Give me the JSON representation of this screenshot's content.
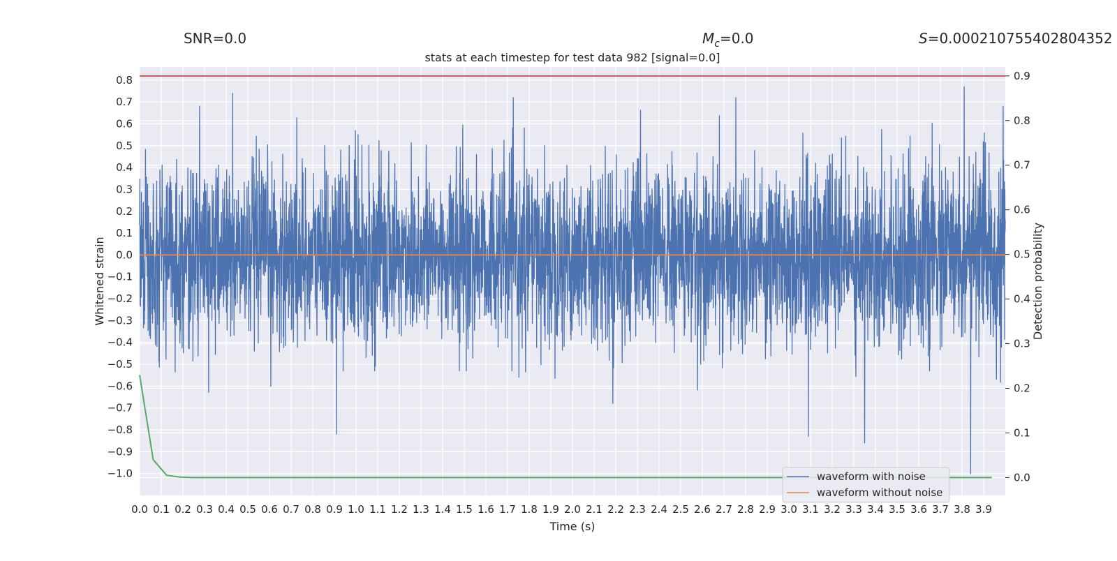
{
  "chart_data": {
    "type": "line",
    "title": "stats at each timestep for test data 982 [signal=0.0]",
    "header": {
      "snr": "SNR=0.0",
      "mc_symbol": "M",
      "mc_subscript": "c",
      "mc_value": "=0.0",
      "s_symbol": "S",
      "s_value": "=0.000210755402804352"
    },
    "xlabel": "Time (s)",
    "ylabel_left": "Whitened strain",
    "ylabel_right": "Detection probability",
    "xlim": [
      0.0,
      4.0
    ],
    "ylim_left": [
      -1.1,
      0.86
    ],
    "ylim_right": [
      -0.04,
      0.92
    ],
    "xticks": [
      "0.0",
      "0.1",
      "0.2",
      "0.3",
      "0.4",
      "0.5",
      "0.6",
      "0.7",
      "0.8",
      "0.9",
      "1.0",
      "1.1",
      "1.2",
      "1.3",
      "1.4",
      "1.5",
      "1.6",
      "1.7",
      "1.8",
      "1.9",
      "2.0",
      "2.1",
      "2.2",
      "2.3",
      "2.4",
      "2.5",
      "2.6",
      "2.7",
      "2.8",
      "2.9",
      "3.0",
      "3.1",
      "3.2",
      "3.3",
      "3.4",
      "3.5",
      "3.6",
      "3.7",
      "3.8",
      "3.9"
    ],
    "yticks_left": [
      "0.8",
      "0.7",
      "0.6",
      "0.5",
      "0.4",
      "0.3",
      "0.2",
      "0.1",
      "0.0",
      "−0.1",
      "−0.2",
      "−0.3",
      "−0.4",
      "−0.5",
      "−0.6",
      "−0.7",
      "−0.8",
      "−0.9",
      "−1.0"
    ],
    "yticks_right": [
      "0.9",
      "0.8",
      "0.7",
      "0.6",
      "0.5",
      "0.4",
      "0.3",
      "0.2",
      "0.1",
      "0.0"
    ],
    "grid": true,
    "legend_position": "bottom-right",
    "colors": {
      "background": "#eaeaf2",
      "grid": "#ffffff",
      "noisy": "#4c72b0",
      "clean": "#dd8452",
      "probability": "#55a868",
      "threshold": "#c44e52"
    },
    "series": [
      {
        "name": "waveform with noise",
        "axis": "left",
        "description_of_values": "whitened strain noise, range approx -0.86 to 0.77 (one spike to -1.0 at t≈3.84s)",
        "highlights": [
          {
            "x": 0.43,
            "y": 0.74
          },
          {
            "x": 0.91,
            "y": -0.82
          },
          {
            "x": 3.09,
            "y": -0.83
          },
          {
            "x": 3.35,
            "y": -0.86
          },
          {
            "x": 3.81,
            "y": 0.77
          },
          {
            "x": 3.84,
            "y": -1.0
          },
          {
            "x": 3.99,
            "y": 0.68
          }
        ]
      },
      {
        "name": "waveform without noise",
        "axis": "left",
        "x": [
          0.0,
          4.0
        ],
        "y": [
          0.0,
          0.0
        ]
      },
      {
        "name": "",
        "axis": "right",
        "x": [
          0.0,
          0.0625,
          0.125,
          0.1875,
          0.25,
          0.5,
          1.0,
          2.0,
          3.0,
          3.9375
        ],
        "y": [
          0.23,
          0.04,
          0.005,
          0.001,
          0.0,
          0.0,
          0.0,
          0.0,
          0.0,
          0.0
        ]
      },
      {
        "name": "",
        "axis": "right",
        "x": [
          0.0,
          4.0
        ],
        "y": [
          0.9,
          0.9
        ]
      }
    ]
  }
}
